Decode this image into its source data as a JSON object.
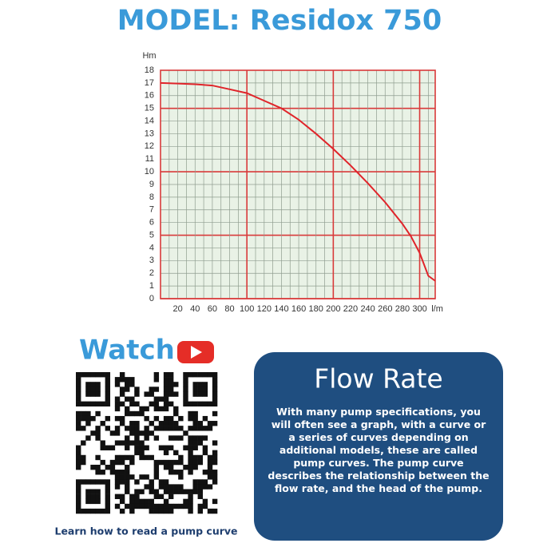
{
  "title": "MODEL: Residox 750",
  "chart_data": {
    "type": "line",
    "x_label": "l/m",
    "y_label": "Hm",
    "x": [
      0,
      20,
      40,
      60,
      80,
      100,
      120,
      140,
      160,
      180,
      200,
      220,
      240,
      260,
      280,
      290,
      300,
      310,
      318
    ],
    "series": [
      {
        "color": "#e0242a",
        "values": [
          17,
          16.95,
          16.9,
          16.8,
          16.5,
          16.2,
          15.6,
          15,
          14.1,
          13,
          11.8,
          10.5,
          9.1,
          7.6,
          5.9,
          4.9,
          3.6,
          1.8,
          1.4
        ]
      }
    ],
    "xlim": [
      0,
      318
    ],
    "ylim": [
      0,
      18
    ],
    "xticks": [
      20,
      40,
      60,
      80,
      100,
      120,
      140,
      160,
      180,
      200,
      220,
      240,
      260,
      280,
      300
    ],
    "yticks": [
      0,
      1,
      2,
      3,
      4,
      5,
      6,
      7,
      8,
      9,
      10,
      11,
      12,
      13,
      14,
      15,
      16,
      17,
      18
    ],
    "grid": true
  },
  "watch": {
    "title": "Watch",
    "caption": "Learn how to read a pump curve"
  },
  "info": {
    "title": "Flow Rate",
    "text": "With many pump specifications, you will often see a graph, with a curve or a series of curves depending on additional models, these are called pump curves. The pump curve describes the relationship between the flow rate, and the head of the pump."
  }
}
